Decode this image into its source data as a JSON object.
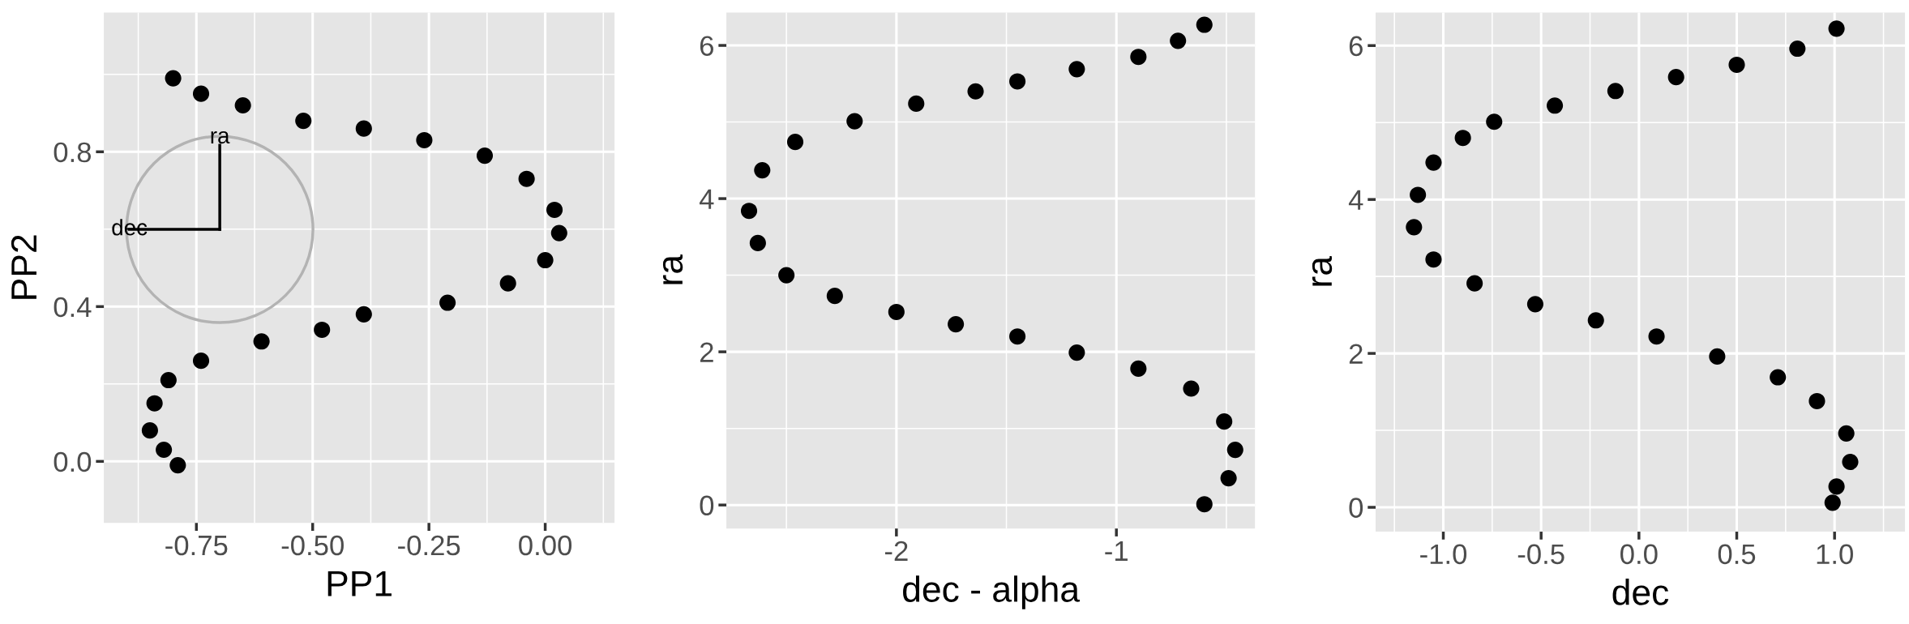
{
  "chart_data": [
    {
      "type": "scatter",
      "xlabel": "PP1",
      "ylabel": "PP2",
      "grid": true,
      "marker": "circle",
      "xlim": [
        -0.949,
        0.149
      ],
      "ylim": [
        -0.159,
        1.16
      ],
      "xticks": [
        {
          "value": -0.75,
          "label": "-0.75"
        },
        {
          "value": -0.5,
          "label": "-0.50"
        },
        {
          "value": -0.25,
          "label": "-0.25"
        },
        {
          "value": 0,
          "label": "0.00"
        }
      ],
      "yticks": [
        {
          "value": 0,
          "label": "0.0"
        },
        {
          "value": 0.4,
          "label": "0.4"
        },
        {
          "value": 0.8,
          "label": "0.8"
        }
      ],
      "annotations": [
        "ra",
        "dec"
      ],
      "series": [
        {
          "color": "#000000",
          "x": [
            -0.8,
            -0.74,
            -0.65,
            -0.52,
            -0.39,
            -0.26,
            -0.13,
            -0.04,
            0.02,
            0.03,
            0.0,
            -0.08,
            -0.21,
            -0.39,
            -0.48,
            -0.61,
            -0.74,
            -0.81,
            -0.84,
            -0.85,
            -0.82,
            -0.79
          ],
          "values": [
            0.99,
            0.95,
            0.92,
            0.88,
            0.86,
            0.83,
            0.79,
            0.73,
            0.65,
            0.59,
            0.52,
            0.46,
            0.41,
            0.38,
            0.34,
            0.31,
            0.26,
            0.21,
            0.15,
            0.08,
            0.03,
            -0.01
          ]
        }
      ]
    },
    {
      "type": "scatter",
      "xlabel": "dec - alpha",
      "ylabel": "ra",
      "grid": true,
      "marker": "circle",
      "xlim": [
        -2.773,
        -0.37
      ],
      "ylim": [
        -0.307,
        6.43
      ],
      "xticks": [
        -2,
        -1
      ],
      "yticks": [
        0,
        2,
        4,
        6
      ],
      "series": [
        {
          "color": "#000000",
          "x": [
            -0.6,
            -0.72,
            -0.9,
            -1.18,
            -1.45,
            -1.64,
            -1.91,
            -2.19,
            -2.46,
            -2.61,
            -2.67,
            -2.63,
            -2.5,
            -2.28,
            -2.0,
            -1.73,
            -1.45,
            -1.18,
            -0.9,
            -0.66,
            -0.51,
            -0.46,
            -0.49,
            -0.6
          ],
          "values": [
            6.27,
            6.06,
            5.85,
            5.69,
            5.53,
            5.4,
            5.24,
            5.01,
            4.74,
            4.37,
            3.84,
            3.42,
            3.0,
            2.73,
            2.52,
            2.36,
            2.2,
            1.99,
            1.78,
            1.52,
            1.09,
            0.72,
            0.35,
            0.01
          ]
        }
      ]
    },
    {
      "type": "scatter",
      "xlabel": "dec",
      "ylabel": "ra",
      "grid": true,
      "marker": "circle",
      "xlim": [
        -1.346,
        1.36
      ],
      "ylim": [
        -0.316,
        6.43
      ],
      "xticks": [
        {
          "value": -1,
          "label": "-1.0"
        },
        {
          "value": -0.5,
          "label": "-0.5"
        },
        {
          "value": 0,
          "label": "0.0"
        },
        {
          "value": 0.5,
          "label": "0.5"
        },
        {
          "value": 1,
          "label": "1.0"
        }
      ],
      "yticks": [
        0,
        2,
        4,
        6
      ],
      "series": [
        {
          "color": "#000000",
          "x": [
            1.01,
            0.81,
            0.5,
            0.19,
            -0.12,
            -0.43,
            -0.74,
            -0.9,
            -1.05,
            -1.13,
            -1.15,
            -1.05,
            -0.84,
            -0.53,
            -0.22,
            0.09,
            0.4,
            0.71,
            0.91,
            1.06,
            1.08,
            1.01,
            0.99
          ],
          "values": [
            6.22,
            5.96,
            5.75,
            5.59,
            5.41,
            5.22,
            5.01,
            4.8,
            4.48,
            4.06,
            3.64,
            3.22,
            2.91,
            2.64,
            2.43,
            2.22,
            1.96,
            1.69,
            1.38,
            0.96,
            0.59,
            0.27,
            0.06
          ]
        }
      ]
    }
  ]
}
